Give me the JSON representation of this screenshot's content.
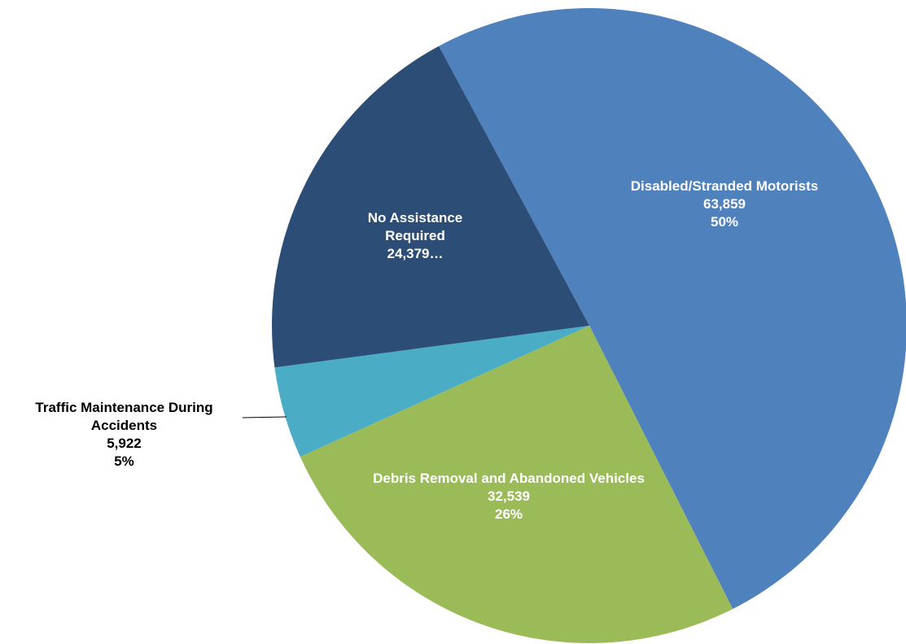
{
  "chart_data": {
    "type": "pie",
    "categories": [
      "Disabled/Stranded Motorists",
      "Debris Removal and Abandoned Vehicles",
      "Traffic Maintenance During Accidents",
      "No Assistance Required"
    ],
    "values": [
      63859,
      32539,
      5922,
      24379
    ],
    "value_labels": [
      "63,859",
      "32,539",
      "5,922",
      "24,379…"
    ],
    "percent_labels": [
      "50%",
      "26%",
      "5%",
      null
    ],
    "colors": [
      "#4f81bd",
      "#9bbb59",
      "#4bacc6",
      "#2c4d75"
    ]
  }
}
